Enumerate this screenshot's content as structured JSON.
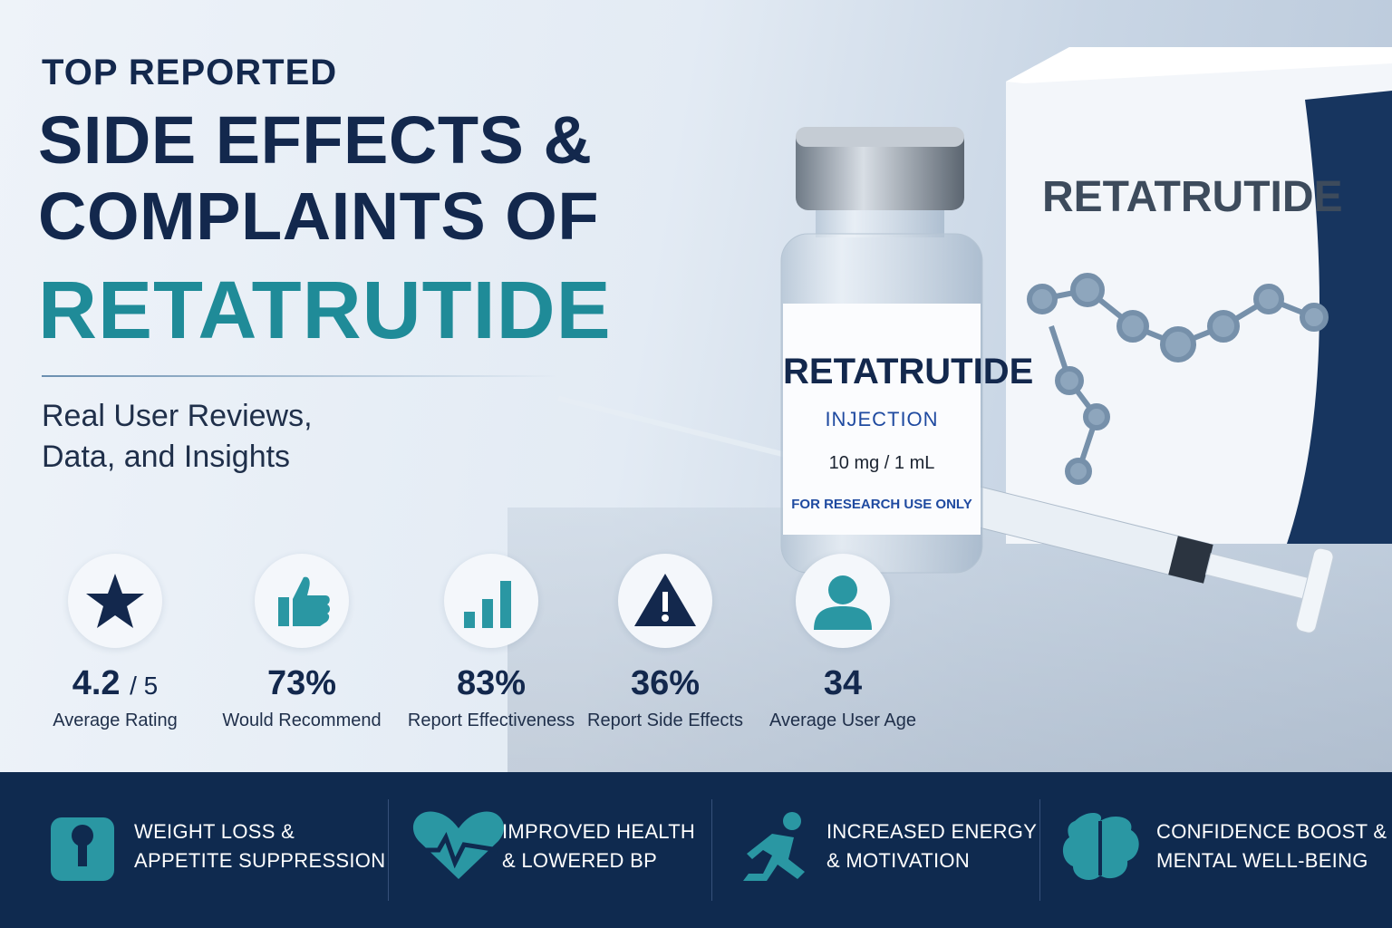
{
  "header": {
    "kicker": "TOP REPORTED",
    "title_line1": "SIDE EFFECTS &",
    "title_line2": "COMPLAINTS OF",
    "title_highlight": "RETATRUTIDE",
    "subtitle_line1": "Real User Reviews,",
    "subtitle_line2": "Data, and Insights"
  },
  "product": {
    "box_label": "RETATRUTIDE",
    "vial_name": "RETATRUTIDE",
    "vial_type": "INJECTION",
    "vial_dose": "10 mg / 1 mL",
    "vial_note": "FOR RESEARCH USE ONLY"
  },
  "stats": [
    {
      "value": "4.2",
      "unit": "/ 5",
      "label": "Average Rating"
    },
    {
      "value": "73%",
      "label": "Would Recommend"
    },
    {
      "value": "83%",
      "label": "Report Effectiveness"
    },
    {
      "value": "36%",
      "label": "Report Side Effects"
    },
    {
      "value": "34",
      "label": "Average User Age"
    }
  ],
  "benefits": [
    {
      "line1": "WEIGHT LOSS &",
      "line2": "APPETITE SUPPRESSION"
    },
    {
      "line1": "IMPROVED HEALTH",
      "line2": "& LOWERED BP"
    },
    {
      "line1": "INCREASED ENERGY",
      "line2": "& MOTIVATION"
    },
    {
      "line1": "CONFIDENCE BOOST &",
      "line2": "MENTAL WELL-BEING"
    }
  ]
}
